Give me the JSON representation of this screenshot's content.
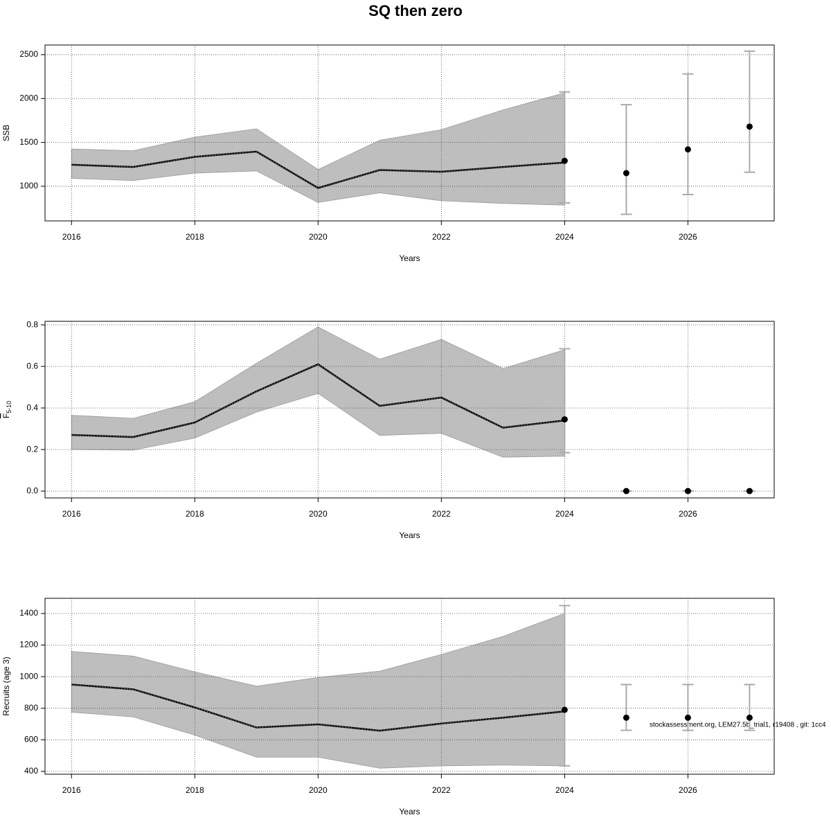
{
  "title": "SQ then zero",
  "footer": "stockassessment.org, LEM27.5b_trial1, r19408 , git: 1cc4",
  "chart_data": [
    {
      "type": "line",
      "ylabel": "SSB",
      "xlabel": "Years",
      "grid": true,
      "color": "#bebebe",
      "xlim": [
        2015.57,
        2027.4
      ],
      "ylim": [
        605,
        2610
      ],
      "xticks": [
        2016,
        2018,
        2020,
        2022,
        2024,
        2026
      ],
      "yticks": [
        1000,
        1500,
        2000,
        2500
      ],
      "x": [
        2016,
        2017,
        2018,
        2019,
        2020,
        2021,
        2022,
        2023,
        2024
      ],
      "values": [
        1245,
        1220,
        1335,
        1395,
        980,
        1185,
        1165,
        1220,
        1270
      ],
      "lower": [
        1090,
        1065,
        1150,
        1175,
        815,
        925,
        835,
        805,
        785
      ],
      "upper": [
        1425,
        1405,
        1560,
        1655,
        1190,
        1525,
        1645,
        1870,
        2065
      ],
      "forecast": {
        "x": [
          2024,
          2025,
          2026,
          2027
        ],
        "values": [
          1290,
          1150,
          1420,
          1680
        ],
        "lower": [
          810,
          680,
          905,
          1160
        ],
        "upper": [
          2075,
          1930,
          2280,
          2540
        ]
      }
    },
    {
      "type": "line",
      "ylabel": "F",
      "ylabel_sub": "5-10",
      "xlabel": "Years",
      "grid": true,
      "color": "#bebebe",
      "xlim": [
        2015.57,
        2027.4
      ],
      "ylim": [
        -0.033,
        0.817
      ],
      "xticks": [
        2016,
        2018,
        2020,
        2022,
        2024,
        2026
      ],
      "yticks": [
        {
          "value": 0,
          "label": "0.0"
        },
        0.2,
        0.4,
        0.6,
        0.8
      ],
      "x": [
        2016,
        2017,
        2018,
        2019,
        2020,
        2021,
        2022,
        2023,
        2024
      ],
      "values": [
        0.27,
        0.26,
        0.33,
        0.48,
        0.61,
        0.41,
        0.45,
        0.305,
        0.34
      ],
      "lower": [
        0.2,
        0.197,
        0.255,
        0.38,
        0.47,
        0.268,
        0.278,
        0.163,
        0.168
      ],
      "upper": [
        0.365,
        0.35,
        0.43,
        0.615,
        0.79,
        0.635,
        0.73,
        0.59,
        0.68
      ],
      "forecast": {
        "x": [
          2024,
          2025,
          2026,
          2027
        ],
        "values": [
          0.345,
          0,
          0,
          0
        ],
        "lower": [
          0.185,
          0,
          0,
          0
        ],
        "upper": [
          0.685,
          0,
          0,
          0
        ]
      }
    },
    {
      "type": "line",
      "ylabel": "Recruits (age 3)",
      "xlabel": "Years",
      "grid": true,
      "color": "#bebebe",
      "xlim": [
        2015.57,
        2027.4
      ],
      "ylim": [
        382,
        1496
      ],
      "xticks": [
        2016,
        2018,
        2020,
        2022,
        2024,
        2026
      ],
      "yticks": [
        400,
        600,
        800,
        1000,
        1200,
        1400
      ],
      "x": [
        2016,
        2017,
        2018,
        2019,
        2020,
        2021,
        2022,
        2023,
        2024
      ],
      "values": [
        950,
        920,
        805,
        678,
        698,
        658,
        703,
        740,
        780
      ],
      "lower": [
        775,
        745,
        630,
        490,
        490,
        420,
        435,
        440,
        435
      ],
      "upper": [
        1160,
        1130,
        1030,
        940,
        995,
        1035,
        1140,
        1255,
        1400
      ],
      "forecast": {
        "x": [
          2024,
          2025,
          2026,
          2027
        ],
        "values": [
          790,
          740,
          740,
          740
        ],
        "lower": [
          435,
          660,
          660,
          660
        ],
        "upper": [
          1450,
          950,
          950,
          950
        ]
      }
    }
  ]
}
